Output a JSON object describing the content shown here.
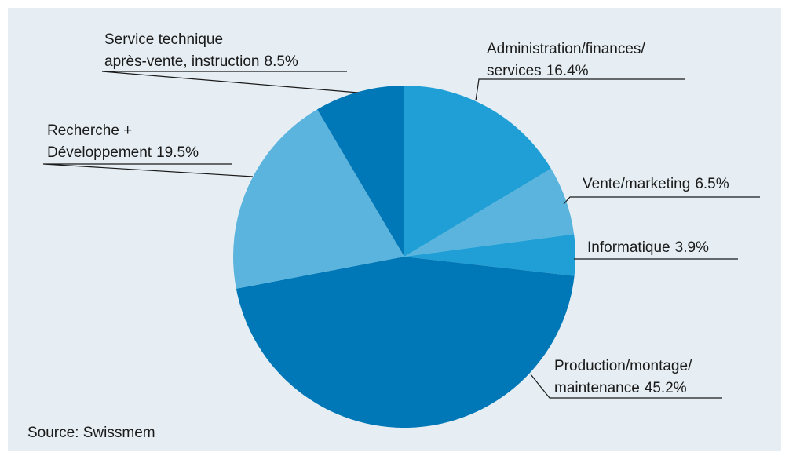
{
  "chart_data": {
    "type": "pie",
    "categories": [
      [
        "Administration/finances/",
        "services"
      ],
      [
        "Vente/marketing"
      ],
      [
        "Informatique"
      ],
      [
        "Production/montage/",
        "maintenance"
      ],
      [
        "Recherche +",
        "Développement"
      ],
      [
        "Service technique",
        "après-vente, instruction"
      ]
    ],
    "values": [
      16.4,
      6.5,
      3.9,
      45.2,
      19.5,
      8.5
    ],
    "value_labels": [
      "16.4%",
      "6.5%",
      "3.9%",
      "45.2%",
      "19.5%",
      "8.5%"
    ],
    "colors": [
      "#1f9fd5",
      "#5ab4dd",
      "#1f9fd5",
      "#0077b6",
      "#5ab4dd",
      "#0077b6"
    ],
    "source": "Source: Swissmem"
  }
}
